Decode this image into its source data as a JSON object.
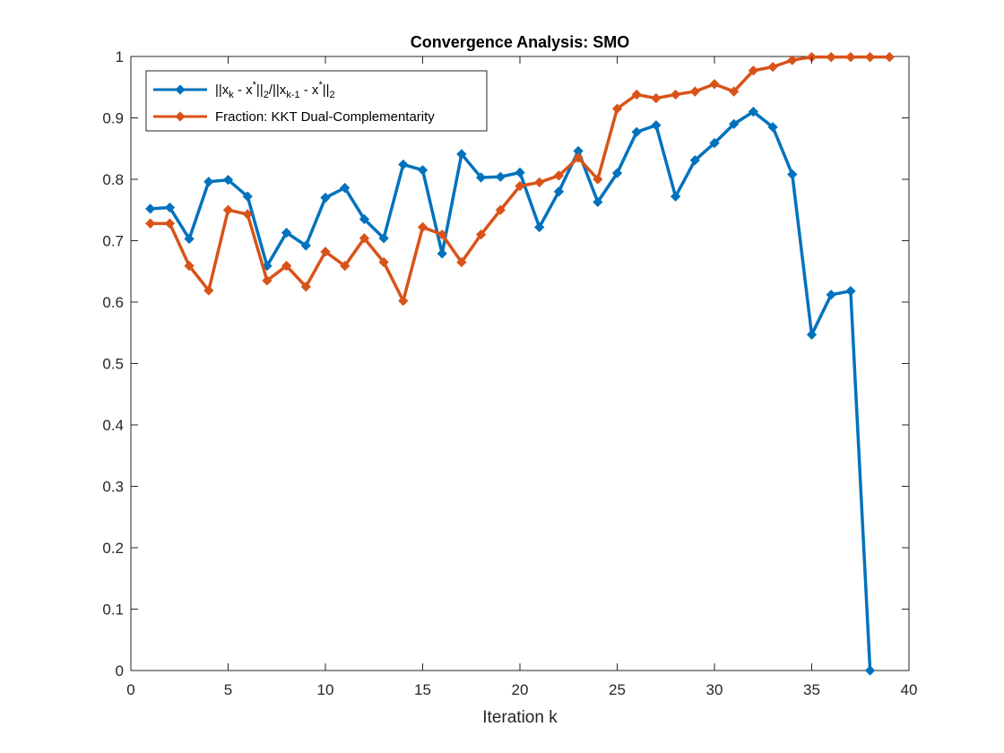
{
  "chart_data": {
    "type": "line",
    "title": "Convergence Analysis: SMO",
    "xlabel": "Iteration k",
    "ylabel": "",
    "xlim": [
      0,
      40
    ],
    "ylim": [
      0,
      1
    ],
    "xticks": [
      0,
      5,
      10,
      15,
      20,
      25,
      30,
      35,
      40
    ],
    "yticks": [
      0,
      0.1,
      0.2,
      0.3,
      0.4,
      0.5,
      0.6,
      0.7,
      0.8,
      0.9,
      1
    ],
    "grid": false,
    "legend_position": "top-left",
    "series": [
      {
        "name": "||x_k - x*||_2/||x_{k-1} - x*||_2",
        "color": "#0072BD",
        "x": [
          1,
          2,
          3,
          4,
          5,
          6,
          7,
          8,
          9,
          10,
          11,
          12,
          13,
          14,
          15,
          16,
          17,
          18,
          19,
          20,
          21,
          22,
          23,
          24,
          25,
          26,
          27,
          28,
          29,
          30,
          31,
          32,
          33,
          34,
          35,
          36,
          37,
          38
        ],
        "values": [
          0.752,
          0.754,
          0.703,
          0.796,
          0.799,
          0.772,
          0.659,
          0.713,
          0.692,
          0.77,
          0.786,
          0.735,
          0.704,
          0.824,
          0.815,
          0.679,
          0.841,
          0.803,
          0.804,
          0.811,
          0.722,
          0.78,
          0.846,
          0.763,
          0.81,
          0.877,
          0.888,
          0.772,
          0.831,
          0.859,
          0.89,
          0.91,
          0.885,
          0.808,
          0.547,
          0.612,
          0.618,
          0.0
        ]
      },
      {
        "name": "Fraction: KKT Dual-Complementarity",
        "color": "#D95319",
        "x": [
          1,
          2,
          3,
          4,
          5,
          6,
          7,
          8,
          9,
          10,
          11,
          12,
          13,
          14,
          15,
          16,
          17,
          18,
          19,
          20,
          21,
          22,
          23,
          24,
          25,
          26,
          27,
          28,
          29,
          30,
          31,
          32,
          33,
          34,
          35,
          36,
          37,
          38,
          39
        ],
        "values": [
          0.728,
          0.728,
          0.659,
          0.619,
          0.75,
          0.743,
          0.635,
          0.659,
          0.625,
          0.682,
          0.659,
          0.704,
          0.665,
          0.602,
          0.722,
          0.71,
          0.665,
          0.71,
          0.75,
          0.789,
          0.795,
          0.806,
          0.835,
          0.8,
          0.915,
          0.938,
          0.932,
          0.938,
          0.943,
          0.955,
          0.943,
          0.977,
          0.983,
          0.994,
          0.999,
          0.999,
          0.999,
          0.999,
          0.999
        ]
      }
    ]
  }
}
